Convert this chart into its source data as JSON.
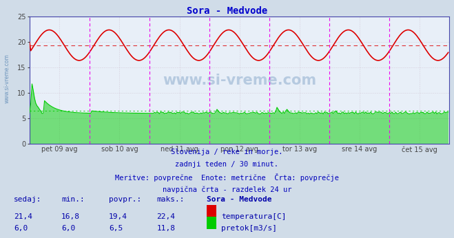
{
  "title": "Sora - Medvode",
  "title_color": "#0000cc",
  "bg_color": "#d0dce8",
  "plot_bg_color": "#e8eff8",
  "x_labels": [
    "pet 09 avg",
    "sob 10 avg",
    "ned 11 avg",
    "pon 12 avg",
    "tor 13 avg",
    "sre 14 avg",
    "čet 15 avg"
  ],
  "y_ticks": [
    0,
    5,
    10,
    15,
    20,
    25
  ],
  "y_lim": [
    0,
    25
  ],
  "temp_avg": 19.4,
  "flow_avg": 6.5,
  "temp_color": "#dd0000",
  "flow_color": "#00cc00",
  "avg_temp_line_color": "#dd0000",
  "avg_flow_line_color": "#00cc00",
  "magenta_line_color": "#ee00ee",
  "caption_lines": [
    "Slovenija / reke in morje.",
    "zadnji teden / 30 minut.",
    "Meritve: povprečne  Enote: metrične  Črta: povprečje",
    "navpična črta - razdelek 24 ur"
  ],
  "table_headers": [
    "sedaj:",
    "min.:",
    "povpr.:",
    "maks.:",
    "Sora - Medvode"
  ],
  "table_row1": [
    "21,4",
    "16,8",
    "19,4",
    "22,4",
    "temperatura[C]"
  ],
  "table_row2": [
    "6,0",
    "6,0",
    "6,5",
    "11,8",
    "pretok[m3/s]"
  ],
  "table_color": "#0000aa",
  "watermark": "www.si-vreme.com",
  "n_points": 336,
  "day_tick_positions": [
    48,
    96,
    144,
    192,
    240,
    288
  ],
  "label_tick_positions": [
    24,
    72,
    120,
    168,
    216,
    264,
    312
  ]
}
